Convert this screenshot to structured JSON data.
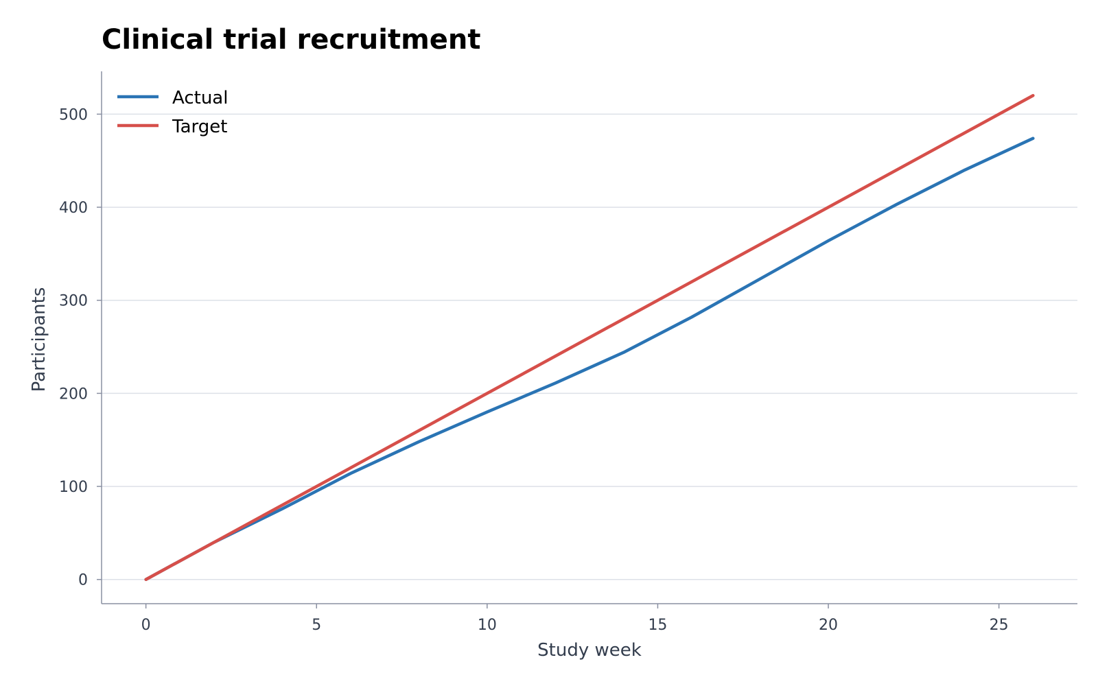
{
  "chart_data": {
    "type": "line",
    "title": "Clinical trial recruitment",
    "xlabel": "Study week",
    "ylabel": "Participants",
    "xlim": [
      -1.3,
      27.3
    ],
    "ylim": [
      -26,
      546
    ],
    "x_ticks": [
      0,
      5,
      10,
      15,
      20,
      25
    ],
    "y_ticks": [
      0,
      100,
      200,
      300,
      400,
      500
    ],
    "grid": "horizontal",
    "legend_position": "top-left",
    "series": [
      {
        "name": "Actual",
        "color": "#2a74b4",
        "x": [
          0,
          2,
          4,
          6,
          8,
          10,
          12,
          14,
          16,
          18,
          20,
          22,
          24,
          26
        ],
        "y": [
          0,
          40,
          76,
          114,
          148,
          180,
          211,
          244,
          282,
          323,
          364,
          403,
          440,
          474
        ]
      },
      {
        "name": "Target",
        "color": "#d64f4a",
        "x": [
          0,
          26
        ],
        "y": [
          0,
          520
        ]
      }
    ]
  }
}
